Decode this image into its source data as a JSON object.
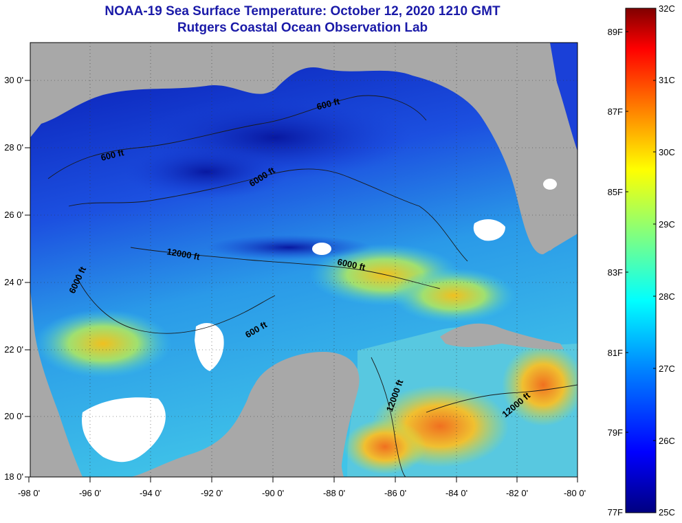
{
  "title": {
    "line1": "NOAA-19 Sea Surface Temperature:  October 12, 2020 1210 GMT",
    "line2": "Rutgers Coastal Ocean Observation Lab"
  },
  "map": {
    "lon_ticks": [
      "-98 0'",
      "-96 0'",
      "-94 0'",
      "-92 0'",
      "-90 0'",
      "-88 0'",
      "-86 0'",
      "-84 0'",
      "-82 0'",
      "-80 0'"
    ],
    "lat_ticks": [
      "30 0'",
      "28 0'",
      "26 0'",
      "24 0'",
      "22 0'",
      "20 0'",
      "18 0'"
    ],
    "contour_labels": [
      "600 ft",
      "600 ft",
      "6000 ft",
      "12000 ft",
      "6000 ft",
      "6000 ft",
      "600 ft",
      "12000 ft",
      "12000 ft"
    ]
  },
  "colorbar": {
    "celsius": [
      "32C",
      "31C",
      "30C",
      "29C",
      "28C",
      "27C",
      "26C",
      "25C"
    ],
    "fahrenheit": [
      "89F",
      "87F",
      "85F",
      "83F",
      "81F",
      "79F",
      "77F"
    ],
    "colors": [
      "#800000",
      "#ff0000",
      "#ff8000",
      "#ffff00",
      "#80ff80",
      "#00ffff",
      "#0080ff",
      "#0000ff",
      "#000080"
    ]
  },
  "legend_colors": {
    "land": "#a8a8a8",
    "cloud": "#ffffff",
    "cool_water": "#1030c8",
    "warm_water": "#40c8f0"
  }
}
